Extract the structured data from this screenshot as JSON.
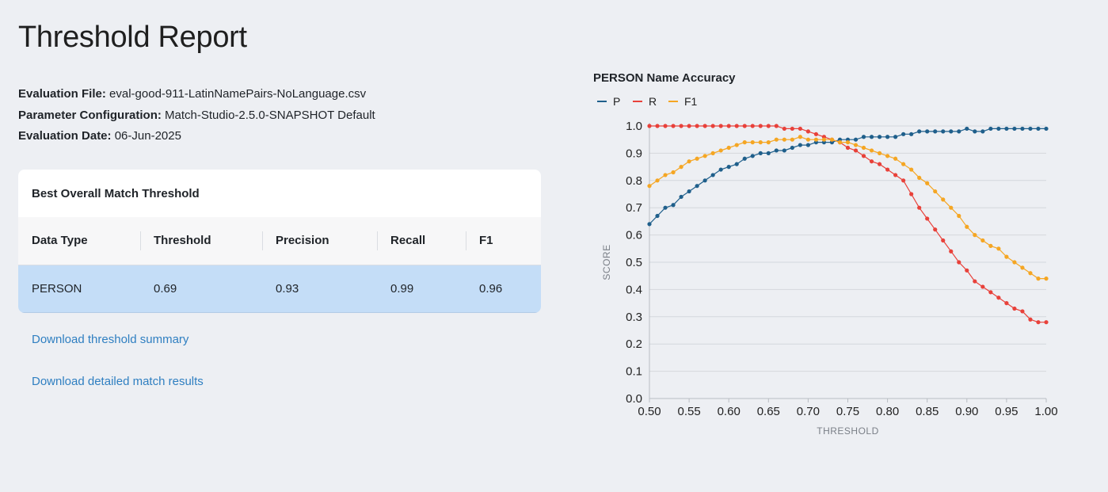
{
  "page": {
    "title": "Threshold Report"
  },
  "meta": {
    "file_label": "Evaluation File:",
    "file_value": "eval-good-911-LatinNamePairs-NoLanguage.csv",
    "config_label": "Parameter Configuration:",
    "config_value": "Match-Studio-2.5.0-SNAPSHOT Default",
    "date_label": "Evaluation Date:",
    "date_value": "06-Jun-2025"
  },
  "best_threshold": {
    "title": "Best Overall Match Threshold",
    "columns": [
      "Data Type",
      "Threshold",
      "Precision",
      "Recall",
      "F1"
    ],
    "rows": [
      [
        "PERSON",
        "0.69",
        "0.93",
        "0.99",
        "0.96"
      ]
    ]
  },
  "links": {
    "summary": "Download threshold summary",
    "details": "Download detailed match results"
  },
  "colors": {
    "P": "#1f5f8b",
    "R": "#e8413a",
    "F1": "#f5a623",
    "row_highlight": "#c4ddf7",
    "link": "#2f7fc1"
  },
  "chart_data": {
    "type": "line",
    "title": "PERSON Name Accuracy",
    "xlabel": "THRESHOLD",
    "ylabel": "SCORE",
    "xlim": [
      0.5,
      1.0
    ],
    "ylim": [
      0,
      1.0
    ],
    "x_ticks": [
      "0.50",
      "0.55",
      "0.60",
      "0.65",
      "0.70",
      "0.75",
      "0.80",
      "0.85",
      "0.90",
      "0.95",
      "1.00"
    ],
    "y_ticks": [
      "0.0",
      "0.1",
      "0.2",
      "0.3",
      "0.4",
      "0.5",
      "0.6",
      "0.7",
      "0.8",
      "0.9",
      "1.0"
    ],
    "grid": true,
    "legend": "top-left",
    "x": [
      0.5,
      0.51,
      0.52,
      0.53,
      0.54,
      0.55,
      0.56,
      0.57,
      0.58,
      0.59,
      0.6,
      0.61,
      0.62,
      0.63,
      0.64,
      0.65,
      0.66,
      0.67,
      0.68,
      0.69,
      0.7,
      0.71,
      0.72,
      0.73,
      0.74,
      0.75,
      0.76,
      0.77,
      0.78,
      0.79,
      0.8,
      0.81,
      0.82,
      0.83,
      0.84,
      0.85,
      0.86,
      0.87,
      0.88,
      0.89,
      0.9,
      0.91,
      0.92,
      0.93,
      0.94,
      0.95,
      0.96,
      0.97,
      0.98,
      0.99,
      1.0
    ],
    "series": [
      {
        "name": "P",
        "color": "#1f5f8b",
        "values": [
          0.64,
          0.67,
          0.7,
          0.71,
          0.74,
          0.76,
          0.78,
          0.8,
          0.82,
          0.84,
          0.85,
          0.86,
          0.88,
          0.89,
          0.9,
          0.9,
          0.91,
          0.91,
          0.92,
          0.93,
          0.93,
          0.94,
          0.94,
          0.94,
          0.95,
          0.95,
          0.95,
          0.96,
          0.96,
          0.96,
          0.96,
          0.96,
          0.97,
          0.97,
          0.98,
          0.98,
          0.98,
          0.98,
          0.98,
          0.98,
          0.99,
          0.98,
          0.98,
          0.99,
          0.99,
          0.99,
          0.99,
          0.99,
          0.99,
          0.99,
          0.99
        ]
      },
      {
        "name": "R",
        "color": "#e8413a",
        "values": [
          1.0,
          1.0,
          1.0,
          1.0,
          1.0,
          1.0,
          1.0,
          1.0,
          1.0,
          1.0,
          1.0,
          1.0,
          1.0,
          1.0,
          1.0,
          1.0,
          1.0,
          0.99,
          0.99,
          0.99,
          0.98,
          0.97,
          0.96,
          0.95,
          0.94,
          0.92,
          0.91,
          0.89,
          0.87,
          0.86,
          0.84,
          0.82,
          0.8,
          0.75,
          0.7,
          0.66,
          0.62,
          0.58,
          0.54,
          0.5,
          0.47,
          0.43,
          0.41,
          0.39,
          0.37,
          0.35,
          0.33,
          0.32,
          0.29,
          0.28,
          0.28
        ]
      },
      {
        "name": "F1",
        "color": "#f5a623",
        "values": [
          0.78,
          0.8,
          0.82,
          0.83,
          0.85,
          0.87,
          0.88,
          0.89,
          0.9,
          0.91,
          0.92,
          0.93,
          0.94,
          0.94,
          0.94,
          0.94,
          0.95,
          0.95,
          0.95,
          0.96,
          0.95,
          0.95,
          0.95,
          0.95,
          0.94,
          0.94,
          0.93,
          0.92,
          0.91,
          0.9,
          0.89,
          0.88,
          0.86,
          0.84,
          0.81,
          0.79,
          0.76,
          0.73,
          0.7,
          0.67,
          0.63,
          0.6,
          0.58,
          0.56,
          0.55,
          0.52,
          0.5,
          0.48,
          0.46,
          0.44,
          0.44
        ]
      }
    ]
  }
}
